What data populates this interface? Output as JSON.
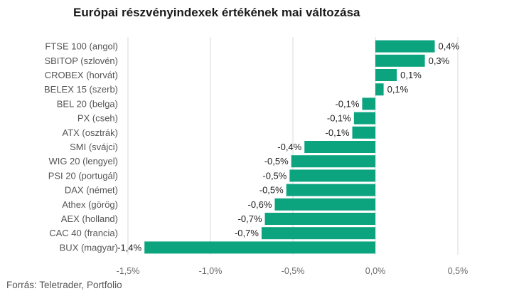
{
  "chart_data": {
    "type": "bar",
    "orientation": "horizontal",
    "title": "Európai részvényindexek értékének mai változása",
    "categories": [
      "FTSE 100 (angol)",
      "SBITOP (szlovén)",
      "CROBEX (horvát)",
      "BELEX 15 (szerb)",
      "BEL 20 (belga)",
      "PX (cseh)",
      "ATX (osztrák)",
      "SMI (svájci)",
      "WIG 20 (lengyel)",
      "PSI 20 (portugál)",
      "DAX (német)",
      "Athex (görög)",
      "AEX (holland)",
      "CAC 40 (francia)",
      "BUX (magyar)"
    ],
    "values": [
      0.36,
      0.3,
      0.13,
      0.05,
      -0.08,
      -0.13,
      -0.14,
      -0.43,
      -0.51,
      -0.52,
      -0.54,
      -0.61,
      -0.67,
      -0.69,
      -1.4
    ],
    "data_labels": [
      "0,4%",
      "0,3%",
      "0,1%",
      "0,1%",
      "-0,1%",
      "-0,1%",
      "-0,1%",
      "-0,4%",
      "-0,5%",
      "-0,5%",
      "-0,5%",
      "-0,6%",
      "-0,7%",
      "-0,7%",
      "-1,4%"
    ],
    "x_ticks": [
      -1.5,
      -1.0,
      -0.5,
      0.0,
      0.5
    ],
    "x_tick_labels": [
      "-1,5%",
      "-1,0%",
      "-0,5%",
      "0,0%",
      "0,5%"
    ],
    "xlim": [
      -1.5,
      0.5
    ],
    "grid": true,
    "legend": "none",
    "bar_color": "#0ba47f",
    "source": "Forrás: Teletrader, Portfolio"
  }
}
